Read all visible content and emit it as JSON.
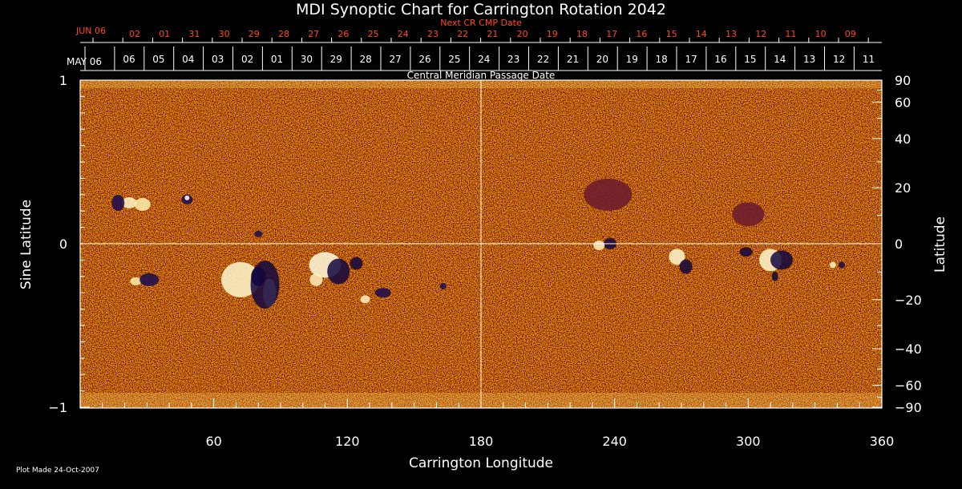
{
  "title": "MDI Synoptic Chart for Carrington Rotation 2042",
  "next_cr_label": "Next CR CMP Date",
  "cmp_label": "Central Meridian Passage Date",
  "plot_made": "Plot Made 24-Oct-2007",
  "xlabel": "Carrington Longitude",
  "ylabel_left": "Sine Latitude",
  "ylabel_right": "Latitude",
  "month_top": "JUN 06",
  "month_bottom": "MAY 06",
  "top_dates": [
    "02",
    "01",
    "31",
    "30",
    "29",
    "28",
    "27",
    "26",
    "25",
    "24",
    "23",
    "22",
    "21",
    "20",
    "19",
    "18",
    "17",
    "16",
    "15",
    "14",
    "13",
    "12",
    "11",
    "10",
    "09"
  ],
  "bottom_dates": [
    "06",
    "05",
    "04",
    "03",
    "02",
    "01",
    "30",
    "29",
    "28",
    "27",
    "26",
    "25",
    "24",
    "23",
    "22",
    "21",
    "20",
    "19",
    "18",
    "17",
    "16",
    "15",
    "14",
    "13",
    "12",
    "11"
  ],
  "x_ticks": [
    "60",
    "120",
    "180",
    "240",
    "300",
    "360"
  ],
  "left_ticks": [
    "1",
    "0",
    "−1"
  ],
  "right_ticks": [
    "90",
    "60",
    "40",
    "20",
    "0",
    "−20",
    "−40",
    "−60",
    "−90"
  ],
  "colors": {
    "background": "#000000",
    "map_base": "#e4480c",
    "red_text": "#ff4a1c",
    "grid": "#ffffff"
  },
  "map": {
    "lon_range": [
      0,
      360
    ],
    "sinlat_range": [
      -1,
      1
    ]
  }
}
